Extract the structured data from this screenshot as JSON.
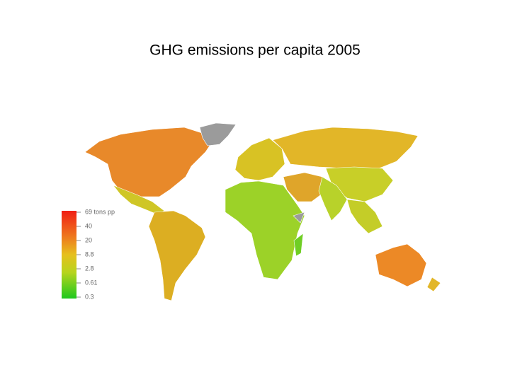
{
  "title": "GHG emissions per capita 2005",
  "legend": {
    "labels": [
      "69 tons pp",
      "40",
      "20",
      "8.8",
      "2.8",
      "0.61",
      "0.3"
    ]
  }
}
